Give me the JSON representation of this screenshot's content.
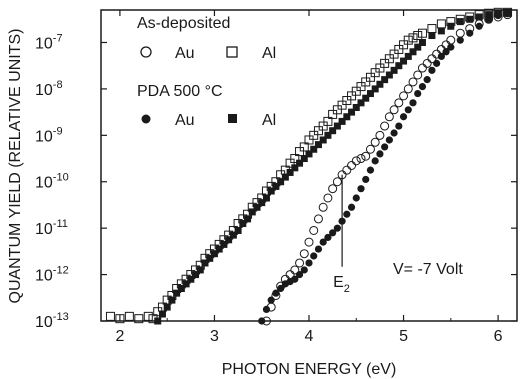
{
  "chart_data": {
    "type": "scatter",
    "xlabel": "PHOTON ENERGY (eV)",
    "ylabel": "QUANTUM YIELD (RELATIVE UNITS)",
    "xlim": [
      1.8,
      6.2
    ],
    "ylim_log10": [
      -13,
      -6.3
    ],
    "y_scale": "log",
    "x_ticks": [
      "2",
      "3",
      "4",
      "5",
      "6"
    ],
    "x_tick_values": [
      2,
      3,
      4,
      5,
      6
    ],
    "y_ticks": [
      {
        "base": "10",
        "exp": "-13",
        "value": -13
      },
      {
        "base": "10",
        "exp": "-12",
        "value": -12
      },
      {
        "base": "10",
        "exp": "-11",
        "value": -11
      },
      {
        "base": "10",
        "exp": "-10",
        "value": -10
      },
      {
        "base": "10",
        "exp": "-9",
        "value": -9
      },
      {
        "base": "10",
        "exp": "-8",
        "value": -8
      },
      {
        "base": "10",
        "exp": "-7",
        "value": -7
      }
    ],
    "legend": {
      "group1_title": "As-deposited",
      "group2_title": "PDA 500 °C",
      "au_label": "Au",
      "al_label": "Al"
    },
    "annotations": {
      "e2_letter": "E",
      "e2_sub": "2",
      "e2_x": 4.35,
      "e2_y_log10": -9.85,
      "voltage": "V= -7 Volt"
    },
    "series": [
      {
        "name": "As-deposited Au",
        "marker": "circle-open",
        "points": [
          [
            3.55,
            -13.0
          ],
          [
            3.6,
            -12.7
          ],
          [
            3.65,
            -12.45
          ],
          [
            3.7,
            -12.25
          ],
          [
            3.75,
            -12.1
          ],
          [
            3.8,
            -12.0
          ],
          [
            3.85,
            -11.9
          ],
          [
            3.9,
            -11.75
          ],
          [
            3.95,
            -11.55
          ],
          [
            4.0,
            -11.3
          ],
          [
            4.05,
            -11.05
          ],
          [
            4.1,
            -10.8
          ],
          [
            4.15,
            -10.55
          ],
          [
            4.2,
            -10.35
          ],
          [
            4.25,
            -10.15
          ],
          [
            4.3,
            -10.0
          ],
          [
            4.35,
            -9.85
          ],
          [
            4.4,
            -9.75
          ],
          [
            4.45,
            -9.65
          ],
          [
            4.5,
            -9.55
          ],
          [
            4.55,
            -9.5
          ],
          [
            4.6,
            -9.45
          ],
          [
            4.65,
            -9.3
          ],
          [
            4.7,
            -9.15
          ],
          [
            4.75,
            -9.0
          ],
          [
            4.8,
            -8.8
          ],
          [
            4.85,
            -8.6
          ],
          [
            4.9,
            -8.45
          ],
          [
            4.95,
            -8.3
          ],
          [
            5.0,
            -8.15
          ],
          [
            5.05,
            -8.0
          ],
          [
            5.1,
            -7.85
          ],
          [
            5.15,
            -7.7
          ],
          [
            5.2,
            -7.55
          ],
          [
            5.25,
            -7.45
          ],
          [
            5.3,
            -7.35
          ],
          [
            5.35,
            -7.25
          ],
          [
            5.4,
            -7.15
          ],
          [
            5.45,
            -7.05
          ],
          [
            5.5,
            -6.95
          ],
          [
            5.6,
            -6.8
          ],
          [
            5.7,
            -6.7
          ],
          [
            5.8,
            -6.6
          ],
          [
            5.9,
            -6.5
          ],
          [
            6.0,
            -6.45
          ],
          [
            6.1,
            -6.4
          ]
        ]
      },
      {
        "name": "As-deposited Al",
        "marker": "square-open",
        "points": [
          [
            1.9,
            -12.9
          ],
          [
            2.0,
            -12.95
          ],
          [
            2.1,
            -12.9
          ],
          [
            2.2,
            -12.95
          ],
          [
            2.3,
            -12.9
          ],
          [
            2.35,
            -12.95
          ],
          [
            2.4,
            -12.8
          ],
          [
            2.45,
            -12.7
          ],
          [
            2.5,
            -12.55
          ],
          [
            2.55,
            -12.45
          ],
          [
            2.6,
            -12.3
          ],
          [
            2.65,
            -12.2
          ],
          [
            2.7,
            -12.1
          ],
          [
            2.75,
            -12.0
          ],
          [
            2.8,
            -11.9
          ],
          [
            2.85,
            -11.8
          ],
          [
            2.9,
            -11.65
          ],
          [
            2.95,
            -11.55
          ],
          [
            3.0,
            -11.45
          ],
          [
            3.05,
            -11.35
          ],
          [
            3.1,
            -11.25
          ],
          [
            3.15,
            -11.15
          ],
          [
            3.2,
            -11.05
          ],
          [
            3.25,
            -10.9
          ],
          [
            3.3,
            -10.8
          ],
          [
            3.35,
            -10.7
          ],
          [
            3.4,
            -10.55
          ],
          [
            3.45,
            -10.45
          ],
          [
            3.5,
            -10.35
          ],
          [
            3.55,
            -10.2
          ],
          [
            3.6,
            -10.1
          ],
          [
            3.65,
            -10.0
          ],
          [
            3.7,
            -9.85
          ],
          [
            3.75,
            -9.75
          ],
          [
            3.8,
            -9.6
          ],
          [
            3.85,
            -9.5
          ],
          [
            3.9,
            -9.35
          ],
          [
            3.95,
            -9.25
          ],
          [
            4.0,
            -9.1
          ],
          [
            4.05,
            -9.0
          ],
          [
            4.1,
            -8.9
          ],
          [
            4.15,
            -8.8
          ],
          [
            4.2,
            -8.7
          ],
          [
            4.25,
            -8.55
          ],
          [
            4.3,
            -8.45
          ],
          [
            4.35,
            -8.35
          ],
          [
            4.4,
            -8.25
          ],
          [
            4.45,
            -8.15
          ],
          [
            4.5,
            -8.05
          ],
          [
            4.55,
            -7.95
          ],
          [
            4.6,
            -7.85
          ],
          [
            4.65,
            -7.75
          ],
          [
            4.7,
            -7.65
          ],
          [
            4.75,
            -7.55
          ],
          [
            4.8,
            -7.45
          ],
          [
            4.85,
            -7.35
          ],
          [
            4.9,
            -7.25
          ],
          [
            4.95,
            -7.15
          ],
          [
            5.0,
            -7.05
          ],
          [
            5.05,
            -6.95
          ],
          [
            5.1,
            -6.9
          ],
          [
            5.15,
            -6.85
          ],
          [
            5.2,
            -6.8
          ],
          [
            5.3,
            -6.7
          ],
          [
            5.4,
            -6.6
          ],
          [
            5.5,
            -6.55
          ],
          [
            5.6,
            -6.5
          ],
          [
            5.7,
            -6.45
          ],
          [
            5.8,
            -6.4
          ],
          [
            5.9,
            -6.37
          ],
          [
            6.0,
            -6.35
          ],
          [
            6.1,
            -6.35
          ]
        ]
      },
      {
        "name": "PDA 500 °C Au",
        "marker": "circle-filled",
        "points": [
          [
            3.5,
            -13.0
          ],
          [
            3.55,
            -12.75
          ],
          [
            3.6,
            -12.55
          ],
          [
            3.65,
            -12.4
          ],
          [
            3.7,
            -12.3
          ],
          [
            3.75,
            -12.2
          ],
          [
            3.8,
            -12.15
          ],
          [
            3.85,
            -12.1
          ],
          [
            3.9,
            -12.0
          ],
          [
            3.95,
            -11.9
          ],
          [
            4.0,
            -11.75
          ],
          [
            4.05,
            -11.6
          ],
          [
            4.1,
            -11.45
          ],
          [
            4.15,
            -11.3
          ],
          [
            4.2,
            -11.2
          ],
          [
            4.25,
            -11.1
          ],
          [
            4.3,
            -11.0
          ],
          [
            4.35,
            -10.85
          ],
          [
            4.4,
            -10.7
          ],
          [
            4.45,
            -10.55
          ],
          [
            4.5,
            -10.35
          ],
          [
            4.55,
            -10.15
          ],
          [
            4.6,
            -9.95
          ],
          [
            4.65,
            -9.75
          ],
          [
            4.7,
            -9.55
          ],
          [
            4.75,
            -9.4
          ],
          [
            4.8,
            -9.25
          ],
          [
            4.85,
            -9.1
          ],
          [
            4.9,
            -8.95
          ],
          [
            4.95,
            -8.8
          ],
          [
            5.0,
            -8.6
          ],
          [
            5.05,
            -8.45
          ],
          [
            5.1,
            -8.3
          ],
          [
            5.15,
            -8.1
          ],
          [
            5.2,
            -7.95
          ],
          [
            5.25,
            -7.8
          ],
          [
            5.3,
            -7.6
          ],
          [
            5.35,
            -7.45
          ],
          [
            5.4,
            -7.3
          ],
          [
            5.45,
            -7.2
          ],
          [
            5.5,
            -7.1
          ],
          [
            5.6,
            -6.95
          ],
          [
            5.7,
            -6.8
          ],
          [
            5.8,
            -6.65
          ],
          [
            5.9,
            -6.5
          ],
          [
            6.0,
            -6.42
          ],
          [
            6.1,
            -6.38
          ]
        ]
      },
      {
        "name": "PDA 500 °C Al",
        "marker": "square-filled",
        "points": [
          [
            2.4,
            -13.0
          ],
          [
            2.45,
            -12.85
          ],
          [
            2.5,
            -12.7
          ],
          [
            2.55,
            -12.55
          ],
          [
            2.6,
            -12.4
          ],
          [
            2.65,
            -12.3
          ],
          [
            2.7,
            -12.2
          ],
          [
            2.75,
            -12.1
          ],
          [
            2.8,
            -12.0
          ],
          [
            2.85,
            -11.9
          ],
          [
            2.9,
            -11.75
          ],
          [
            2.95,
            -11.65
          ],
          [
            3.0,
            -11.55
          ],
          [
            3.05,
            -11.45
          ],
          [
            3.1,
            -11.35
          ],
          [
            3.15,
            -11.25
          ],
          [
            3.2,
            -11.15
          ],
          [
            3.25,
            -11.05
          ],
          [
            3.3,
            -10.9
          ],
          [
            3.35,
            -10.8
          ],
          [
            3.4,
            -10.65
          ],
          [
            3.45,
            -10.55
          ],
          [
            3.5,
            -10.45
          ],
          [
            3.55,
            -10.35
          ],
          [
            3.6,
            -10.2
          ],
          [
            3.65,
            -10.1
          ],
          [
            3.7,
            -10.0
          ],
          [
            3.75,
            -9.9
          ],
          [
            3.8,
            -9.8
          ],
          [
            3.85,
            -9.7
          ],
          [
            3.9,
            -9.6
          ],
          [
            3.95,
            -9.5
          ],
          [
            4.0,
            -9.4
          ],
          [
            4.05,
            -9.3
          ],
          [
            4.1,
            -9.2
          ],
          [
            4.15,
            -9.1
          ],
          [
            4.2,
            -9.0
          ],
          [
            4.25,
            -8.9
          ],
          [
            4.3,
            -8.8
          ],
          [
            4.35,
            -8.7
          ],
          [
            4.4,
            -8.6
          ],
          [
            4.45,
            -8.5
          ],
          [
            4.5,
            -8.4
          ],
          [
            4.55,
            -8.3
          ],
          [
            4.6,
            -8.2
          ],
          [
            4.65,
            -8.1
          ],
          [
            4.7,
            -8.0
          ],
          [
            4.75,
            -7.9
          ],
          [
            4.8,
            -7.8
          ],
          [
            4.85,
            -7.7
          ],
          [
            4.9,
            -7.6
          ],
          [
            4.95,
            -7.5
          ],
          [
            5.0,
            -7.4
          ],
          [
            5.05,
            -7.3
          ],
          [
            5.1,
            -7.2
          ],
          [
            5.15,
            -7.1
          ],
          [
            5.2,
            -7.0
          ],
          [
            5.3,
            -6.85
          ],
          [
            5.4,
            -6.75
          ],
          [
            5.5,
            -6.65
          ],
          [
            5.6,
            -6.55
          ],
          [
            5.7,
            -6.5
          ],
          [
            5.8,
            -6.45
          ],
          [
            5.9,
            -6.4
          ],
          [
            6.0,
            -6.37
          ],
          [
            6.1,
            -6.35
          ]
        ]
      }
    ]
  }
}
